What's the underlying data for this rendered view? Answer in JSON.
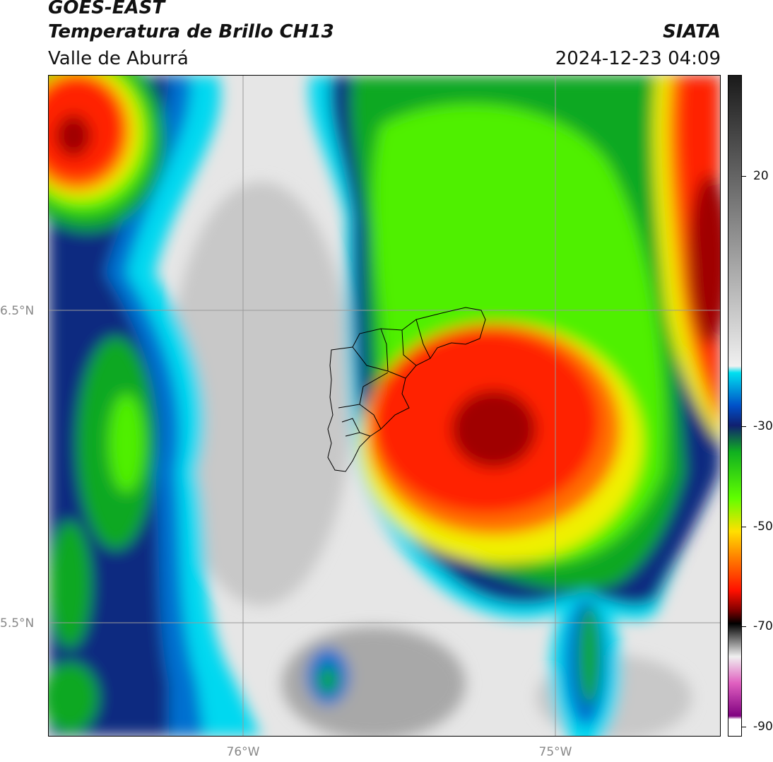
{
  "header": {
    "satellite": "GOES-EAST",
    "product": "Temperatura de Brillo CH13",
    "region": "Valle de Aburrá",
    "organization": "SIATA",
    "datetime": "2024-12-23 04:09"
  },
  "axes": {
    "lat_labels": [
      "6.5°N",
      "5.5°N"
    ],
    "lon_labels": [
      "76°W",
      "75°W"
    ]
  },
  "colorbar": {
    "ticks": [
      "20",
      "-30",
      "-50",
      "-70",
      "-90"
    ],
    "colors": {
      "warm_gray_top": "#1a1a1a",
      "light_gray": "#f0f0f0",
      "cyan": "#00e0f0",
      "blue": "#0050c8",
      "navy": "#102070",
      "green": "#10b020",
      "lime": "#60ff00",
      "yellow": "#ffe000",
      "orange": "#ff8000",
      "red": "#ff1000",
      "dark_red": "#800000",
      "black": "#000000",
      "pink": "#e060c0",
      "purple": "#800080"
    }
  },
  "map_colors": {
    "clear_sky_light": "#e6e6e6",
    "clear_sky_mid": "#c8c8c8",
    "clear_sky_dark": "#a8a8a8",
    "cyan": "#00d8f0",
    "blue": "#0070d0",
    "navy": "#102a80",
    "green": "#10a820",
    "lime": "#50f000",
    "yellow": "#f0f000",
    "orange": "#ff7000",
    "red": "#ff2000",
    "dark_red": "#a00000",
    "grid": "#9a9a9a"
  }
}
